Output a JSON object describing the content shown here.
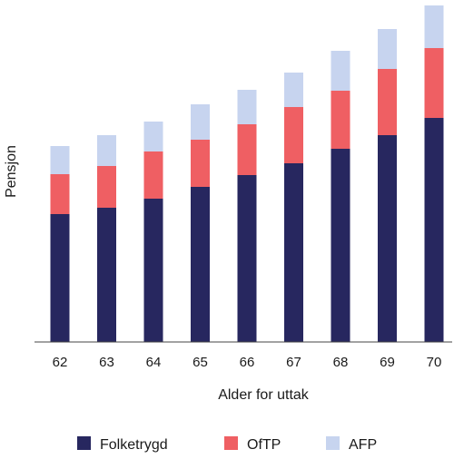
{
  "chart_data": {
    "type": "bar",
    "stacked": true,
    "categories": [
      "62",
      "63",
      "64",
      "65",
      "66",
      "67",
      "68",
      "69",
      "70"
    ],
    "series": [
      {
        "name": "Folketrygd",
        "color": "#27275f",
        "values": [
          141,
          148,
          158,
          171,
          184,
          197,
          213,
          228,
          247
        ]
      },
      {
        "name": "OfTP",
        "color": "#ef5f63",
        "values": [
          44,
          46,
          52,
          52,
          56,
          62,
          64,
          73,
          77
        ]
      },
      {
        "name": "AFP",
        "color": "#c7d4ef",
        "values": [
          31,
          34,
          33,
          39,
          38,
          38,
          44,
          44,
          47
        ]
      }
    ],
    "xlabel": "Alder for uttak",
    "ylabel": "Pensjon",
    "ylim": [
      0,
      371
    ],
    "y_ticks_shown": false,
    "grid": false,
    "legend_position": "bottom"
  }
}
